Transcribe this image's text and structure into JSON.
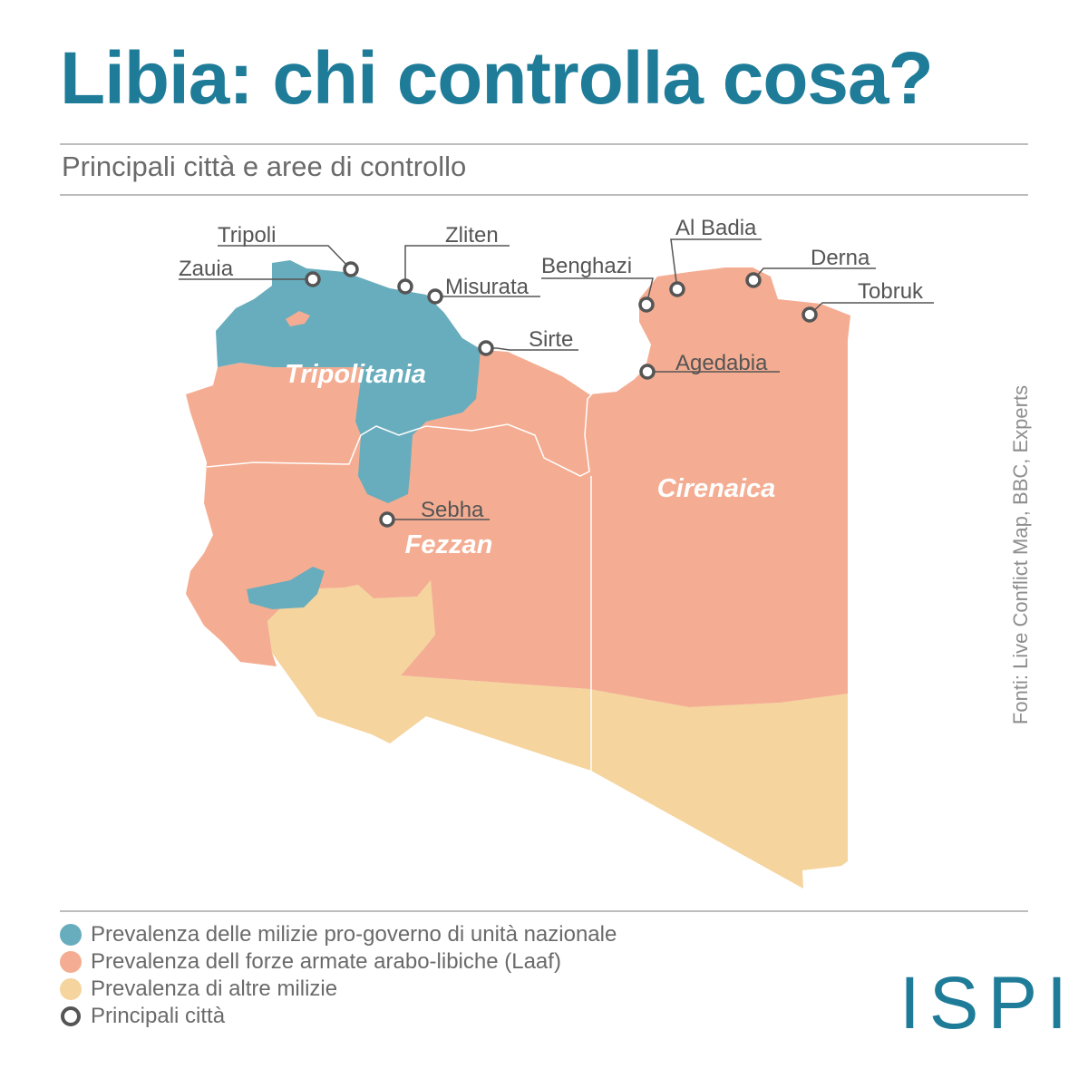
{
  "header": {
    "title": "Libia: chi controlla cosa?",
    "subtitle": "Principali città e aree di controllo"
  },
  "colors": {
    "title": "#1f7c99",
    "gna": "#68adbd",
    "laaf": "#f4ad92",
    "other": "#f5d49e",
    "city_ring": "#555555",
    "text": "#6a6a6a"
  },
  "map": {
    "regions": [
      "Tripolitania",
      "Fezzan",
      "Cirenaica"
    ],
    "cities": [
      "Tripoli",
      "Zauia",
      "Zliten",
      "Misurata",
      "Sirte",
      "Benghazi",
      "Al Badia",
      "Derna",
      "Tobruk",
      "Agedabia",
      "Sebha"
    ]
  },
  "source": "Fonti: Live Conflict Map, BBC, Experts",
  "legend": [
    {
      "label": "Prevalenza delle milizie pro-governo di unità nazionale",
      "swatch": "gna"
    },
    {
      "label": "Prevalenza dell forze armate arabo-libiche (Laaf)",
      "swatch": "laaf"
    },
    {
      "label": "Prevalenza di altre milizie",
      "swatch": "other"
    },
    {
      "label": "Principali città",
      "swatch": "city"
    }
  ],
  "logo": "ISPI"
}
